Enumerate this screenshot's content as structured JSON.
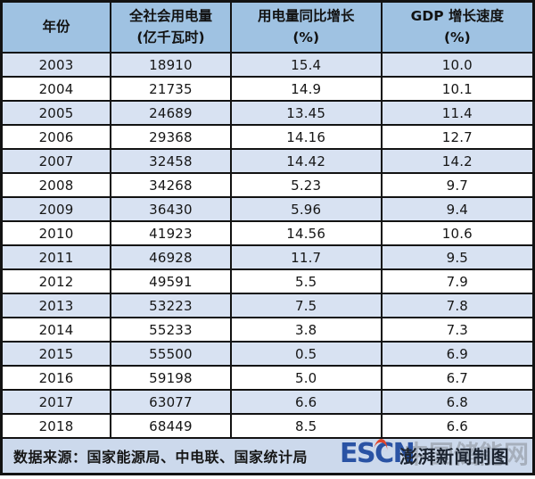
{
  "colors": {
    "header_bg": "#9fc2e2",
    "row_shaded_bg": "#d8e2f2",
    "row_plain_bg": "#ffffff",
    "footer_bg": "#ccd9ec",
    "border": "#121212",
    "escn_logo_blue": "#2a53a4",
    "escn_logo_red": "#e0462d",
    "watermark_gray": "#8d949d"
  },
  "chart_data": {
    "type": "table",
    "columns": [
      {
        "line1": "年份",
        "line2": ""
      },
      {
        "line1": "全社会用电量",
        "line2": "(亿千瓦时)"
      },
      {
        "line1": "用电量同比增长",
        "line2": "(%)"
      },
      {
        "line1": "GDP 增长速度",
        "line2": "(%)"
      }
    ],
    "rows": [
      [
        "2003",
        "18910",
        "15.4",
        "10.0"
      ],
      [
        "2004",
        "21735",
        "14.9",
        "10.1"
      ],
      [
        "2005",
        "24689",
        "13.45",
        "11.4"
      ],
      [
        "2006",
        "29368",
        "14.16",
        "12.7"
      ],
      [
        "2007",
        "32458",
        "14.42",
        "14.2"
      ],
      [
        "2008",
        "34268",
        "5.23",
        "9.7"
      ],
      [
        "2009",
        "36430",
        "5.96",
        "9.4"
      ],
      [
        "2010",
        "41923",
        "14.56",
        "10.6"
      ],
      [
        "2011",
        "46928",
        "11.7",
        "9.5"
      ],
      [
        "2012",
        "49591",
        "5.5",
        "7.9"
      ],
      [
        "2013",
        "53223",
        "7.5",
        "7.8"
      ],
      [
        "2014",
        "55233",
        "3.8",
        "7.3"
      ],
      [
        "2015",
        "55500",
        "0.5",
        "6.9"
      ],
      [
        "2016",
        "59198",
        "5.0",
        "6.7"
      ],
      [
        "2017",
        "63077",
        "6.6",
        "6.8"
      ],
      [
        "2018",
        "68449",
        "8.5",
        "6.6"
      ]
    ]
  },
  "footer": {
    "source": "数据来源：国家能源局、中电联、国家统计局",
    "watermark_escn": "ESCN",
    "watermark_site": "中国储能网",
    "watermark_credit": "澎湃新闻制图"
  }
}
